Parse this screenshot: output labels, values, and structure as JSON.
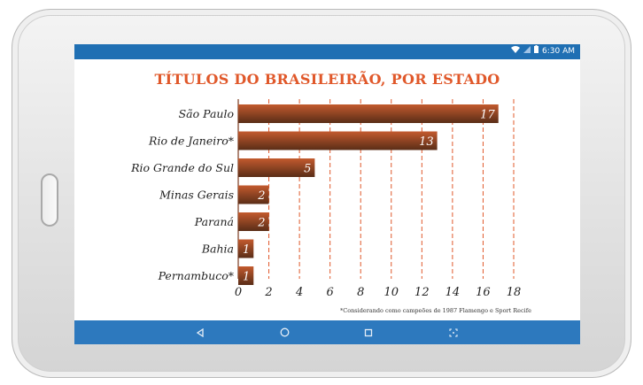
{
  "device": {
    "status_time": "6:30 AM",
    "nav": {
      "back_icon": "back-triangle-icon",
      "home_icon": "home-circle-icon",
      "recents_icon": "recents-square-icon",
      "screenshot_icon": "screenshot-icon"
    }
  },
  "colors": {
    "title": "#e0582a",
    "bar_top": "#c35a2e",
    "bar_bottom": "#5a2d17",
    "gridline": "#e0582a",
    "statusbar": "#1f6fb3",
    "navbar": "#2d79be"
  },
  "chart_data": {
    "type": "bar",
    "orientation": "horizontal",
    "title": "TÍTULOS DO BRASILEIRÃO, POR ESTADO",
    "categories": [
      "São Paulo",
      "Rio de Janeiro*",
      "Rio Grande do Sul",
      "Minas Gerais",
      "Paraná",
      "Bahia",
      "Pernambuco*"
    ],
    "values": [
      17,
      13,
      5,
      2,
      2,
      1,
      1
    ],
    "xlim": [
      0,
      18
    ],
    "xticks": [
      0,
      2,
      4,
      6,
      8,
      10,
      12,
      14,
      16,
      18
    ],
    "grid": "vertical dashed",
    "footnote": "*Considerando como campeões de 1987 Flamengo e Sport Recife"
  }
}
